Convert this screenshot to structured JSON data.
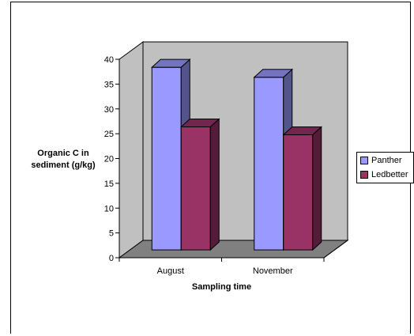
{
  "chart_data": {
    "type": "bar",
    "style": "3d-clustered-column",
    "categories": [
      "August",
      "November"
    ],
    "series": [
      {
        "name": "Panther",
        "values": [
          36.8,
          34.8
        ],
        "color": "#9999FF"
      },
      {
        "name": "Ledbetter",
        "values": [
          24.8,
          23.2
        ],
        "color": "#993366"
      }
    ],
    "xlabel": "Sampling time",
    "ylabel_lines": [
      "Organic C in",
      "sediment (g/kg)"
    ],
    "ylim": [
      0,
      40
    ],
    "yticks": [
      "0",
      "5",
      "10",
      "15",
      "20",
      "25",
      "30",
      "35",
      "40"
    ],
    "legend_position": "right",
    "grid": false,
    "wall_color": "#C0C0C0",
    "floor_color": "#808080"
  }
}
